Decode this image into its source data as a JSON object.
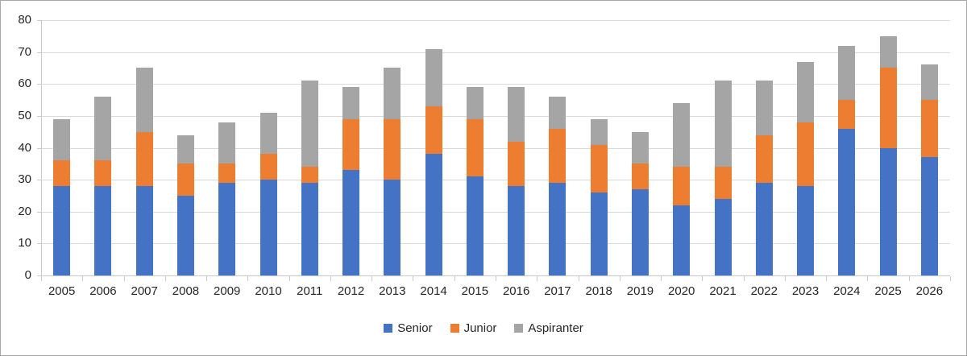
{
  "chart_data": {
    "type": "bar",
    "stacked": true,
    "title": "",
    "xlabel": "",
    "ylabel": "",
    "categories": [
      "2005",
      "2006",
      "2007",
      "2008",
      "2009",
      "2010",
      "2011",
      "2012",
      "2013",
      "2014",
      "2015",
      "2016",
      "2017",
      "2018",
      "2019",
      "2020",
      "2021",
      "2022",
      "2023",
      "2024",
      "2025",
      "2026"
    ],
    "series": [
      {
        "name": "Senior",
        "color": "#4472c4",
        "values": [
          28,
          28,
          28,
          25,
          29,
          30,
          29,
          33,
          30,
          38,
          31,
          28,
          29,
          26,
          27,
          22,
          24,
          29,
          28,
          46,
          40,
          37
        ]
      },
      {
        "name": "Junior",
        "color": "#ed7d31",
        "values": [
          8,
          8,
          17,
          10,
          6,
          8,
          5,
          16,
          19,
          15,
          18,
          14,
          17,
          15,
          8,
          12,
          10,
          15,
          20,
          9,
          25,
          18
        ]
      },
      {
        "name": "Aspiranter",
        "color": "#a5a5a5",
        "values": [
          13,
          20,
          20,
          9,
          13,
          13,
          27,
          10,
          16,
          18,
          10,
          17,
          10,
          8,
          10,
          20,
          27,
          17,
          19,
          17,
          10,
          11
        ]
      }
    ],
    "ylim": [
      0,
      80
    ],
    "ytick_step": 10,
    "y_tick_labels": [
      "0",
      "10",
      "20",
      "30",
      "40",
      "50",
      "60",
      "70",
      "80"
    ],
    "grid": true,
    "legend_position": "bottom",
    "colors": {
      "gridline": "#d9d9d9",
      "axis": "#c9c9c9",
      "tick_label": "#262626",
      "frame_border": "#a6a6a6",
      "background": "#ffffff"
    }
  }
}
